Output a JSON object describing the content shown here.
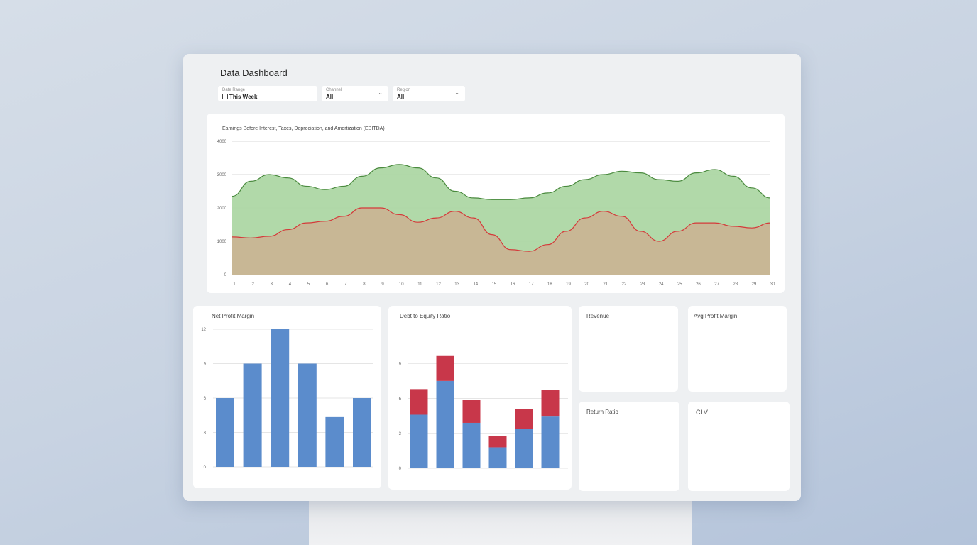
{
  "header": {
    "title": "Data Dashboard"
  },
  "filters": [
    {
      "label": "Date Range",
      "value": "This Week",
      "icon": "calendar-icon"
    },
    {
      "label": "Channel",
      "value": "All",
      "icon": "chevron-down-icon"
    },
    {
      "label": "Region",
      "value": "All",
      "icon": "chevron-down-icon"
    }
  ],
  "kpis": [
    {
      "title": "Revenue"
    },
    {
      "title": "Avg Profit Margin"
    },
    {
      "title": "Return Ratio"
    },
    {
      "title": "CLV"
    }
  ],
  "colors": {
    "green_area": "#a8d5a0",
    "green_line": "#4a8a3e",
    "tan_area": "#c9b594",
    "red_line": "#d43a3a",
    "blue_bar": "#5b8ccc",
    "red_bar": "#c8374a"
  },
  "chart_data": [
    {
      "type": "area",
      "title": "Earnings Before Interest, Taxes, Depreciation, and Amortization (EBITDA)",
      "x": [
        1,
        2,
        3,
        4,
        5,
        6,
        7,
        8,
        9,
        10,
        11,
        12,
        13,
        14,
        15,
        16,
        17,
        18,
        19,
        20,
        21,
        22,
        23,
        24,
        25,
        26,
        27,
        28,
        29,
        30
      ],
      "ylim": [
        0,
        4000
      ],
      "yticks": [
        0,
        1000,
        2000,
        3000,
        4000
      ],
      "grid": true,
      "series": [
        {
          "color": "#4a8a3e",
          "values": [
            2350,
            2800,
            3000,
            2900,
            2650,
            2550,
            2650,
            2950,
            3200,
            3300,
            3200,
            2900,
            2500,
            2300,
            2250,
            2250,
            2300,
            2450,
            2650,
            2850,
            3000,
            3100,
            3050,
            2850,
            2800,
            3050,
            3150,
            2950,
            2600,
            2300
          ]
        },
        {
          "color": "#d43a3a",
          "values": [
            1130,
            1100,
            1150,
            1350,
            1550,
            1600,
            1750,
            2000,
            2000,
            1800,
            1570,
            1700,
            1900,
            1700,
            1200,
            750,
            700,
            900,
            1300,
            1700,
            1900,
            1750,
            1300,
            1000,
            1300,
            1550,
            1550,
            1450,
            1400,
            1550
          ]
        }
      ]
    },
    {
      "type": "bar",
      "title": "Net Profit Margin",
      "ylim": [
        0,
        12
      ],
      "yticks": [
        0,
        3,
        6,
        9,
        12
      ],
      "grid": true,
      "series": [
        {
          "color": "#5b8ccc",
          "values": [
            6,
            9,
            12,
            9,
            4.4,
            6
          ]
        }
      ]
    },
    {
      "type": "bar",
      "stacked": true,
      "title": "Debt to Equity Ratio",
      "ylim": [
        0,
        12
      ],
      "yticks": [
        0,
        3,
        6,
        9
      ],
      "grid": true,
      "series": [
        {
          "color": "#5b8ccc",
          "values": [
            4.6,
            7.5,
            3.9,
            1.8,
            3.4,
            4.5
          ]
        },
        {
          "color": "#c8374a",
          "values": [
            2.2,
            2.2,
            2.0,
            1.0,
            1.7,
            2.2
          ]
        }
      ]
    }
  ]
}
